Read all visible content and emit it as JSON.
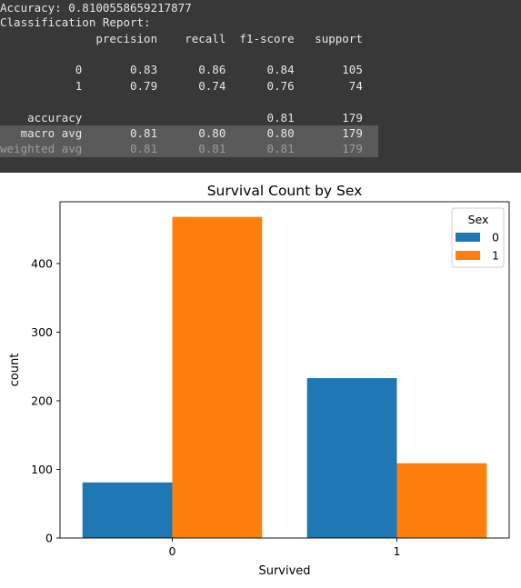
{
  "console": {
    "lines": [
      "Accuracy: 0.8100558659217877",
      "Classification Report:",
      "              precision    recall  f1-score   support",
      "",
      "           0       0.83      0.86      0.84       105",
      "           1       0.79      0.74      0.76        74",
      "",
      "    accuracy                           0.81       179",
      "   macro avg       0.81      0.80      0.80       179",
      "weighted avg       0.81      0.81      0.81       179"
    ]
  },
  "chart_data": {
    "type": "bar",
    "title": "Survival Count by Sex",
    "xlabel": "Survived",
    "ylabel": "count",
    "categories": [
      "0",
      "1"
    ],
    "series": [
      {
        "name": "0",
        "color": "#1f77b4",
        "values": [
          81,
          233
        ]
      },
      {
        "name": "1",
        "color": "#ff7f0e",
        "values": [
          468,
          109
        ]
      }
    ],
    "ylim": [
      0,
      490
    ],
    "yticks": [
      0,
      100,
      200,
      300,
      400
    ],
    "legend": {
      "title": "Sex",
      "placement": "top-right"
    },
    "grid": false
  }
}
